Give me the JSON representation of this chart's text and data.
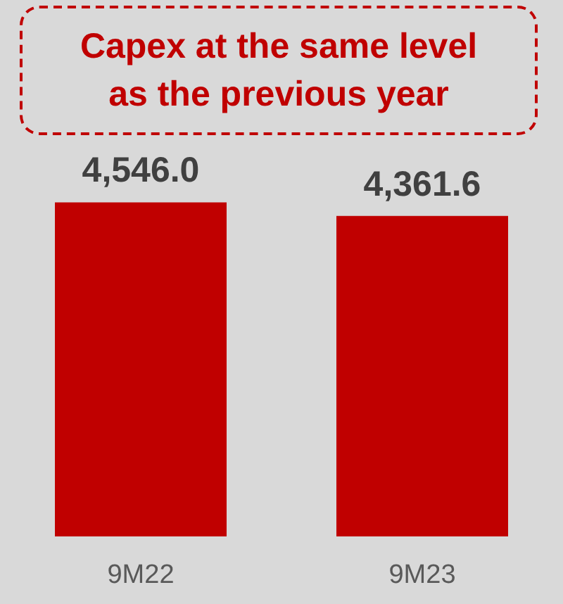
{
  "chart_data": {
    "type": "bar",
    "title": "Capex at the same level as the previous year",
    "categories": [
      "9M22",
      "9M23"
    ],
    "values": [
      4546.0,
      4361.6
    ],
    "value_labels": [
      "4,546.0",
      "4,361.6"
    ],
    "color": "#c00000"
  }
}
